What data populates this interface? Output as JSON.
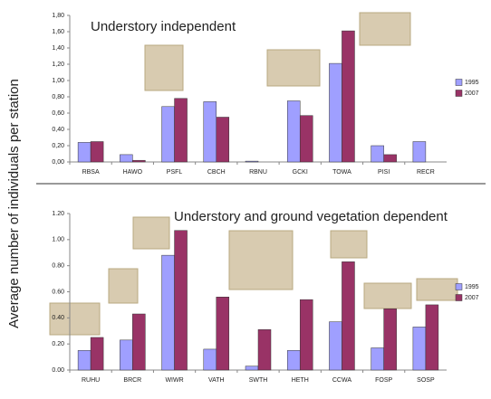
{
  "ylabel": "Average number of individuals per station",
  "chart_data": [
    {
      "type": "bar",
      "title": "Understory independent",
      "categories": [
        "RBSA",
        "HAWO",
        "PSFL",
        "CBCH",
        "RBNU",
        "GCKI",
        "TOWA",
        "PISI",
        "RECR"
      ],
      "series": [
        {
          "name": "1995",
          "color": "#9f9fff",
          "values": [
            0.24,
            0.09,
            0.68,
            0.74,
            0.01,
            0.75,
            1.21,
            0.2,
            0.25
          ]
        },
        {
          "name": "2007",
          "color": "#993366",
          "values": [
            0.25,
            0.02,
            0.78,
            0.55,
            0,
            0.57,
            1.61,
            0.09,
            0
          ]
        }
      ],
      "ylim": [
        0,
        1.8
      ],
      "yticks": [
        {
          "value": 0,
          "label": "0,00"
        },
        {
          "value": 0.2,
          "label": "0,20"
        },
        {
          "value": 0.4,
          "label": "0,40"
        },
        {
          "value": 0.6,
          "label": "0,60"
        },
        {
          "value": 0.8,
          "label": "0,80"
        },
        {
          "value": 1.0,
          "label": "1,00"
        },
        {
          "value": 1.2,
          "label": "1,20"
        },
        {
          "value": 1.4,
          "label": "1,40"
        },
        {
          "value": 1.6,
          "label": "1,60"
        },
        {
          "value": 1.8,
          "label": "1,80"
        }
      ]
    },
    {
      "type": "bar",
      "title": "Understory and ground vegetation dependent",
      "categories": [
        "RUHU",
        "BRCR",
        "WIWR",
        "VATH",
        "SWTH",
        "HETH",
        "CCWA",
        "FOSP",
        "SOSP"
      ],
      "series": [
        {
          "name": "1995",
          "color": "#9f9fff",
          "values": [
            0.15,
            0.23,
            0.88,
            0.16,
            0.03,
            0.15,
            0.37,
            0.17,
            0.33
          ]
        },
        {
          "name": "2007",
          "color": "#993366",
          "values": [
            0.25,
            0.43,
            1.07,
            0.56,
            0.31,
            0.54,
            0.83,
            0.47,
            0.5
          ]
        }
      ],
      "ylim": [
        0,
        1.2
      ],
      "yticks": [
        {
          "value": 0,
          "label": "0.00"
        },
        {
          "value": 0.2,
          "label": "0.20"
        },
        {
          "value": 0.4,
          "label": "0.40"
        },
        {
          "value": 0.6,
          "label": "0.60"
        },
        {
          "value": 0.8,
          "label": "0.80"
        },
        {
          "value": 1.0,
          "label": "1.00"
        },
        {
          "value": 1.2,
          "label": "1.20"
        }
      ]
    }
  ]
}
